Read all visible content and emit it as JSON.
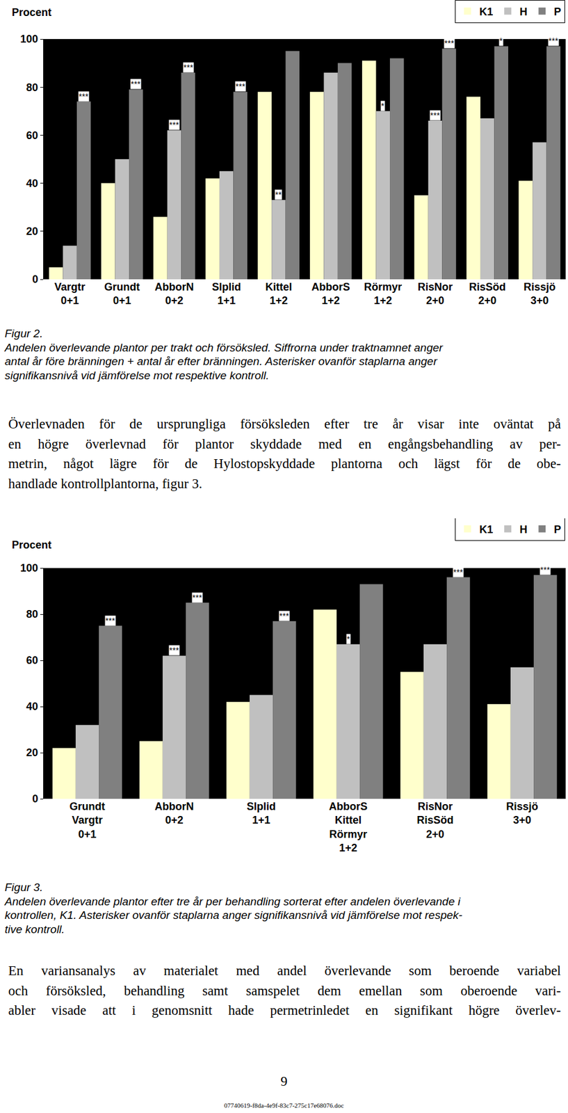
{
  "chart_data": [
    {
      "type": "bar",
      "y_label": "Procent",
      "categories": [
        "Vargtr\n0+1",
        "Grundt\n0+1",
        "AbborN\n0+2",
        "Slplid\n1+1",
        "Kittel\n1+2",
        "AbborS\n1+2",
        "Rörmyr\n1+2",
        "RisNor\n2+0",
        "RisSöd\n2+0",
        "Rissjö\n3+0"
      ],
      "series": [
        {
          "name": "K1",
          "color": "#ffffcc",
          "values": [
            5,
            40,
            26,
            42,
            78,
            78,
            91,
            35,
            76,
            41
          ],
          "significance": [
            null,
            null,
            null,
            null,
            null,
            null,
            null,
            null,
            null,
            null
          ]
        },
        {
          "name": "H",
          "color": "#c0c0c0",
          "values": [
            14,
            50,
            62,
            45,
            33,
            86,
            70,
            66,
            67,
            57
          ],
          "significance": [
            null,
            null,
            "***",
            null,
            "**",
            null,
            "*",
            "***",
            null,
            null
          ]
        },
        {
          "name": "P",
          "color": "#808080",
          "values": [
            74,
            79,
            86,
            78,
            95,
            90,
            92,
            96,
            97,
            97
          ],
          "significance": [
            "***",
            "***",
            "***",
            "***",
            null,
            null,
            null,
            "***",
            "*",
            "***"
          ]
        }
      ],
      "ylim": [
        0,
        100
      ],
      "yticks": [
        0,
        20,
        40,
        60,
        80,
        100
      ],
      "grid": false,
      "legend": "top right"
    },
    {
      "type": "bar",
      "y_label": "Procent",
      "categories": [
        "Grundt\nVargtr\n0+1",
        "AbborN\n0+2",
        "Slplid\n1+1",
        "AbborS\nKittel\nRörmyr\n1+2",
        "RisNor\nRisSöd\n2+0",
        "Rissjö\n3+0"
      ],
      "series": [
        {
          "name": "K1",
          "color": "#ffffcc",
          "values": [
            22,
            25,
            42,
            82,
            55,
            41
          ],
          "significance": [
            null,
            null,
            null,
            null,
            null,
            null
          ]
        },
        {
          "name": "H",
          "color": "#c0c0c0",
          "values": [
            32,
            62,
            45,
            67,
            67,
            57
          ],
          "significance": [
            null,
            "***",
            null,
            "*",
            null,
            null
          ]
        },
        {
          "name": "P",
          "color": "#808080",
          "values": [
            75,
            85,
            77,
            93,
            96,
            97
          ],
          "significance": [
            "***",
            "***",
            "***",
            null,
            "***",
            "***"
          ]
        }
      ],
      "ylim": [
        0,
        100
      ],
      "yticks": [
        0,
        20,
        40,
        60,
        80,
        100
      ],
      "grid": false,
      "legend": "top right"
    }
  ],
  "document": {
    "captions": [
      [
        "Figur 2.",
        "Andelen överlevande plantor per trakt och försöksled. Siffrorna under traktnamnet anger",
        "antal år före bränningen + antal år efter bränningen. Asterisker ovanför staplarna anger",
        "signifikansnivå vid jämförelse mot respektive kontroll."
      ],
      [
        "Figur 3.",
        "Andelen överlevande plantor efter tre år per behandling sorterat efter andelen överlevande i",
        "kontrollen, K1. Asterisker ovanför staplarna anger signifikansnivå vid jämförelse mot respek-",
        "tive kontroll."
      ]
    ],
    "paragraphs": [
      [
        "Överlevnaden för de ursprungliga försöksleden efter tre år visar inte oväntat på",
        "en högre överlevnad för plantor skyddade med en engångsbehandling av per-",
        "metrin, något lägre för de Hylostopskyddade plantorna och lägst för de obe-",
        "handlade kontrollplantorna, figur 3."
      ],
      [
        "En variansanalys av materialet med andel överlevande som beroende variabel",
        "och försöksled, behandling samt samspelet dem emellan som oberoende vari-",
        "abler visade att i genomsnitt hade permetrinledet en signifikant högre överlev-"
      ]
    ],
    "page_number": "9",
    "footer": "07740619-f8da-4e9f-83c7-275c17e68076.doc"
  }
}
